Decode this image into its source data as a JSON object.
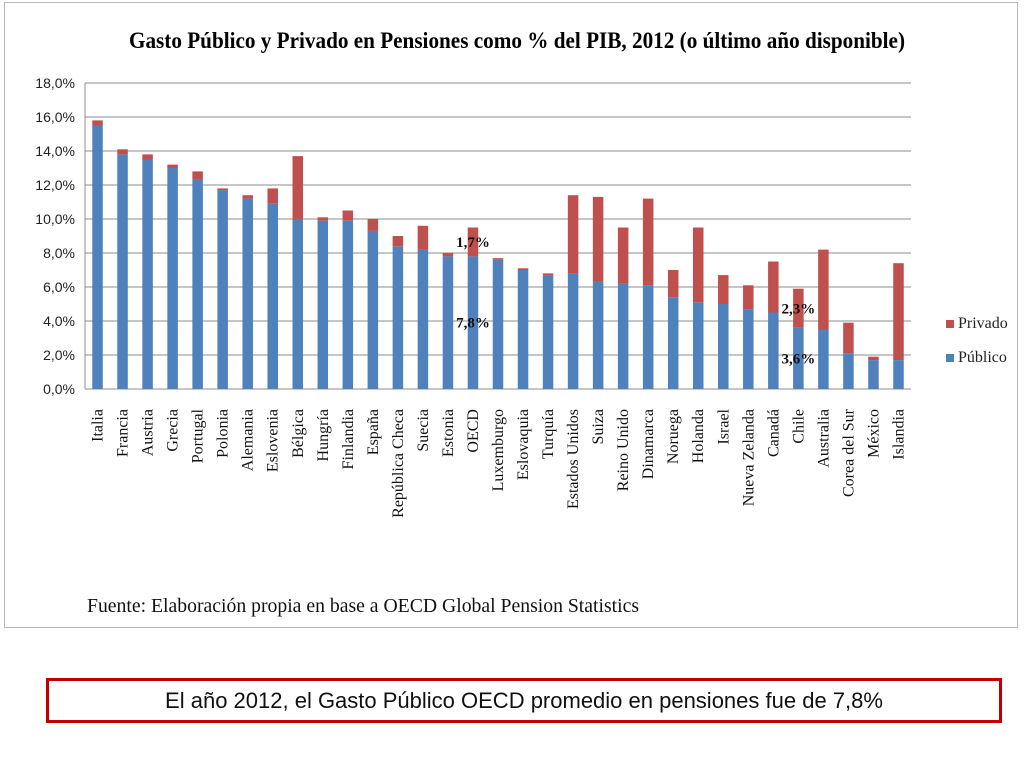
{
  "chart_data": {
    "type": "bar",
    "stacked": true,
    "title": "Gasto Público y Privado en Pensiones como % del PIB, 2012 (o último año disponible)",
    "categories": [
      "Italia",
      "Francia",
      "Austria",
      "Grecia",
      "Portugal",
      "Polonia",
      "Alemania",
      "Eslovenia",
      "Bélgica",
      "Hungría",
      "Finlandia",
      "España",
      "República Checa",
      "Suecia",
      "Estonia",
      "OECD",
      "Luxemburgo",
      "Eslovaquia",
      "Turquía",
      "Estados Unidos",
      "Suiza",
      "Reino Unido",
      "Dinamarca",
      "Noruega",
      "Holanda",
      "Israel",
      "Nueva Zelanda",
      "Canadá",
      "Chile",
      "Australia",
      "Corea del Sur",
      "México",
      "Islandia"
    ],
    "series": [
      {
        "name": "Público",
        "color": "#4f81bd",
        "values": [
          15.5,
          13.8,
          13.5,
          13.0,
          12.3,
          11.7,
          11.2,
          10.9,
          10.0,
          9.9,
          9.9,
          9.3,
          8.4,
          8.2,
          7.8,
          7.8,
          7.6,
          7.0,
          6.7,
          6.8,
          6.3,
          6.2,
          6.1,
          5.4,
          5.1,
          5.0,
          4.7,
          4.5,
          3.6,
          3.5,
          2.1,
          1.7,
          1.7
        ]
      },
      {
        "name": "Privado",
        "color": "#c0504d",
        "values": [
          0.3,
          0.3,
          0.3,
          0.2,
          0.5,
          0.1,
          0.2,
          0.9,
          3.7,
          0.2,
          0.6,
          0.7,
          0.6,
          1.4,
          0.2,
          1.7,
          0.1,
          0.1,
          0.1,
          4.6,
          5.0,
          3.3,
          5.1,
          1.6,
          4.4,
          1.7,
          1.4,
          3.0,
          2.3,
          4.7,
          1.8,
          0.2,
          5.7
        ]
      }
    ],
    "ylim": [
      0,
      18
    ],
    "yticks": [
      "0,0%",
      "2,0%",
      "4,0%",
      "6,0%",
      "8,0%",
      "10,0%",
      "12,0%",
      "14,0%",
      "16,0%",
      "18,0%"
    ],
    "grid": true,
    "legend_position": "right",
    "annotations": [
      {
        "category": "OECD",
        "series": "Privado",
        "text": "1,7%"
      },
      {
        "category": "OECD",
        "series": "Público",
        "text": "7,8%"
      },
      {
        "category": "Chile",
        "series": "Privado",
        "text": "2,3%"
      },
      {
        "category": "Chile",
        "series": "Público",
        "text": "3,6%"
      }
    ],
    "source": "Fuente: Elaboración propia en base a OECD Global Pension Statistics"
  },
  "caption": "El año 2012, el Gasto Público OECD promedio en pensiones fue de 7,8%"
}
